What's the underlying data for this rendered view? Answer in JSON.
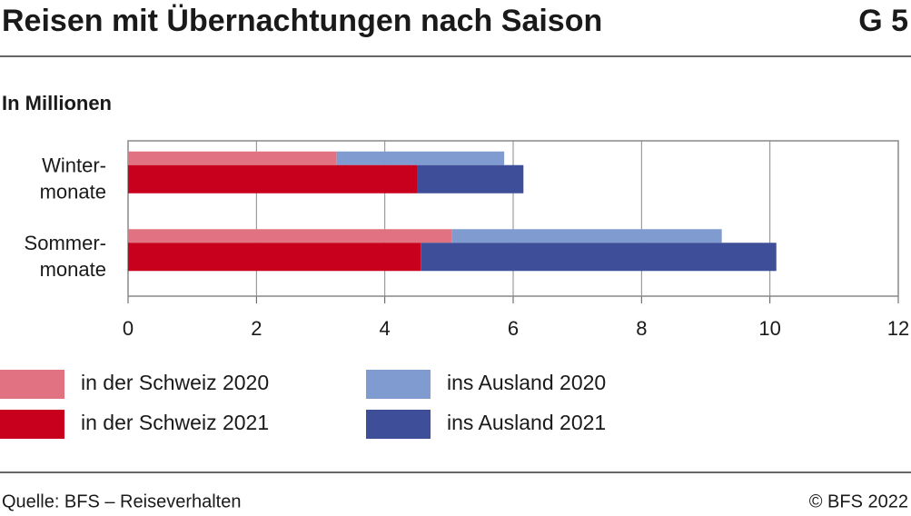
{
  "chart_data": {
    "type": "stacked_hbar",
    "title": "Reisen mit Übernachtungen nach Saison",
    "figure_id": "G 5",
    "subtitle": "In Millionen",
    "categories": [
      "Winter-\nmonate",
      "Sommer-\nmonate"
    ],
    "series": [
      {
        "name": "in der Schweiz 2020",
        "color": "#e07282",
        "stack": 0,
        "values": [
          3.25,
          5.04
        ]
      },
      {
        "name": "ins Ausland 2020",
        "color": "#7f9bcf",
        "stack": 0,
        "values": [
          2.61,
          4.21
        ]
      },
      {
        "name": "in der Schweiz 2021",
        "color": "#c8001e",
        "stack": 1,
        "values": [
          4.5,
          4.56
        ]
      },
      {
        "name": "ins Ausland 2021",
        "color": "#3f4e99",
        "stack": 1,
        "values": [
          1.66,
          5.54
        ]
      }
    ],
    "xlim": [
      0,
      12
    ],
    "xticks": [
      0,
      2,
      4,
      6,
      8,
      10,
      12
    ],
    "grid": true,
    "source": "Quelle: BFS – Reiseverhalten",
    "copyright": "© BFS 2022"
  }
}
